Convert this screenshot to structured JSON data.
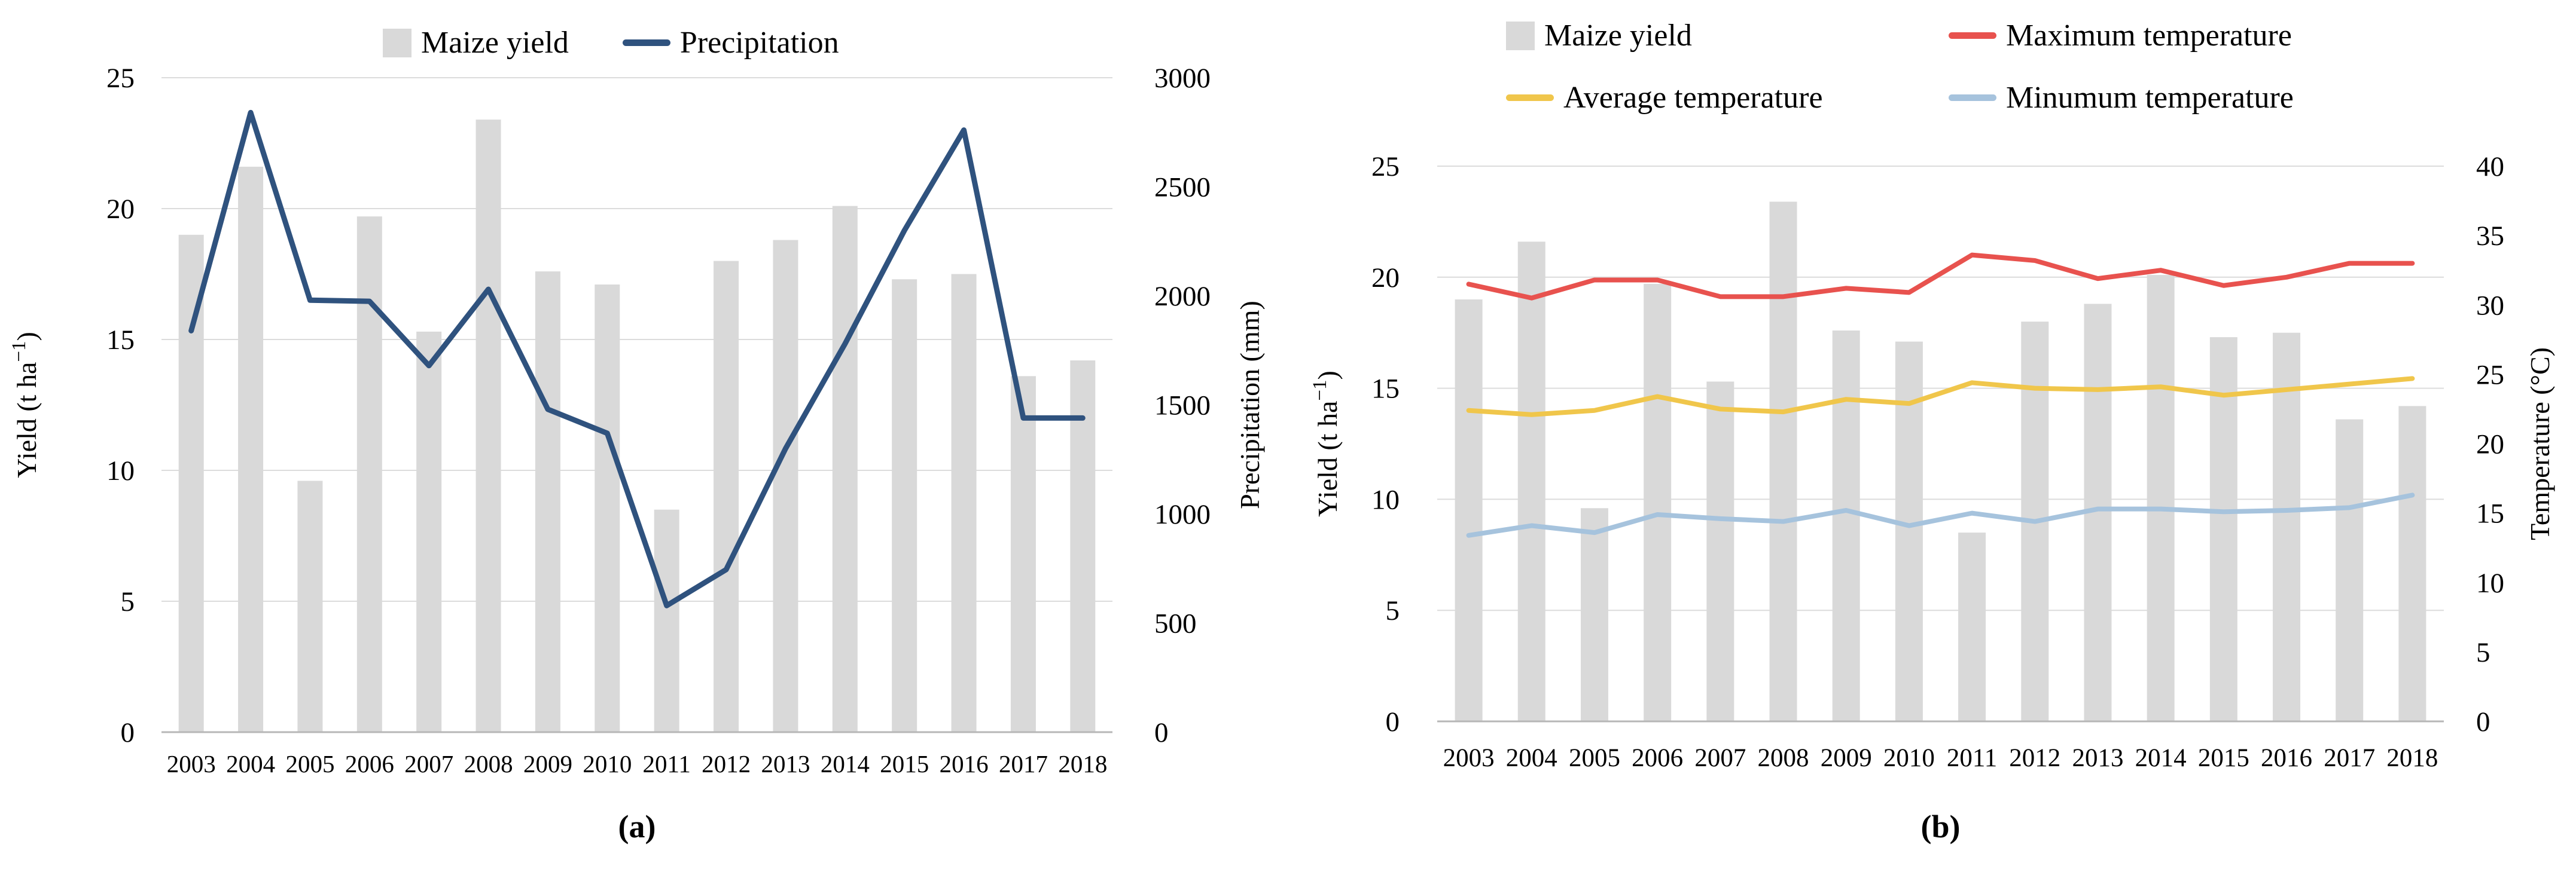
{
  "colors": {
    "bar": "#d9d9d9",
    "gridline": "#dcdcdc",
    "axis_line": "#b7b7b7",
    "precipitation": "#2f527e",
    "max_temp": "#e8524e",
    "avg_temp": "#f0c64b",
    "min_temp": "#a6c3dd",
    "text": "#000000"
  },
  "chart_data": [
    {
      "id": "a",
      "type": "bar+line",
      "panel_label": "(a)",
      "grid": "horizontal",
      "legend_position": "top-center",
      "categories": [
        "2003",
        "2004",
        "2005",
        "2006",
        "2007",
        "2008",
        "2009",
        "2010",
        "2011",
        "2012",
        "2013",
        "2014",
        "2015",
        "2016",
        "2017",
        "2018"
      ],
      "bar_series": {
        "name": "Maize yield",
        "axis": "left",
        "color_key": "bar",
        "values": [
          19.0,
          21.6,
          9.6,
          19.7,
          15.3,
          23.4,
          17.6,
          17.1,
          8.5,
          18.0,
          18.8,
          20.1,
          17.3,
          17.5,
          13.6,
          14.2
        ]
      },
      "line_series": [
        {
          "name": "Precipitation",
          "axis": "right",
          "color_key": "precipitation",
          "width": 9,
          "values": [
            1840,
            2840,
            1980,
            1975,
            1680,
            2030,
            1480,
            1370,
            580,
            745,
            1300,
            1780,
            2300,
            2760,
            1440,
            1440
          ]
        }
      ],
      "left_axis": {
        "title": {
          "pre": "Yield (t ha",
          "sup": "−1",
          "post": ")"
        },
        "min": 0,
        "max": 25,
        "step": 5
      },
      "right_axis": {
        "title": {
          "pre": "Precipitation (mm)"
        },
        "min": 0,
        "max": 3000,
        "step": 500
      },
      "legend": [
        {
          "label": "Maize yield",
          "marker": "square",
          "color_key": "bar"
        },
        {
          "label": "Precipitation",
          "marker": "line",
          "color_key": "precipitation"
        }
      ]
    },
    {
      "id": "b",
      "type": "bar+line",
      "panel_label": "(b)",
      "grid": "horizontal",
      "legend_position": "top-center-two-rows",
      "categories": [
        "2003",
        "2004",
        "2005",
        "2006",
        "2007",
        "2008",
        "2009",
        "2010",
        "2011",
        "2012",
        "2013",
        "2014",
        "2015",
        "2016",
        "2017",
        "2018"
      ],
      "bar_series": {
        "name": "Maize yield",
        "axis": "left",
        "color_key": "bar",
        "values": [
          19.0,
          21.6,
          9.6,
          19.7,
          15.3,
          23.4,
          17.6,
          17.1,
          8.5,
          18.0,
          18.8,
          20.1,
          17.3,
          17.5,
          13.6,
          14.2
        ]
      },
      "line_series": [
        {
          "name": "Maximum temperature",
          "axis": "right",
          "color_key": "max_temp",
          "width": 8,
          "values": [
            31.5,
            30.5,
            31.8,
            31.8,
            30.6,
            30.6,
            31.2,
            30.9,
            33.6,
            33.2,
            31.9,
            32.5,
            31.4,
            32.0,
            33.0,
            33.0
          ]
        },
        {
          "name": "Average temperature",
          "axis": "right",
          "color_key": "avg_temp",
          "width": 8,
          "values": [
            22.4,
            22.1,
            22.4,
            23.4,
            22.5,
            22.3,
            23.2,
            22.9,
            24.4,
            24.0,
            23.9,
            24.1,
            23.5,
            23.9,
            24.3,
            24.7
          ]
        },
        {
          "name": "Minumum temperature",
          "axis": "right",
          "color_key": "min_temp",
          "width": 8,
          "values": [
            13.4,
            14.1,
            13.6,
            14.9,
            14.6,
            14.4,
            15.2,
            14.1,
            15.0,
            14.4,
            15.3,
            15.3,
            15.1,
            15.2,
            15.4,
            16.3
          ]
        }
      ],
      "left_axis": {
        "title": {
          "pre": "Yield (t ha",
          "sup": "−1",
          "post": ")"
        },
        "min": 0,
        "max": 25,
        "step": 5
      },
      "right_axis": {
        "title": {
          "pre": "Temperature (°C)"
        },
        "min": 0,
        "max": 40,
        "step": 5
      },
      "legend": [
        {
          "label": "Maize yield",
          "marker": "square",
          "color_key": "bar"
        },
        {
          "label": "Maximum temperature",
          "marker": "line",
          "color_key": "max_temp"
        },
        {
          "label": "Average temperature",
          "marker": "line",
          "color_key": "avg_temp"
        },
        {
          "label": "Minumum temperature",
          "marker": "line",
          "color_key": "min_temp"
        }
      ]
    }
  ]
}
